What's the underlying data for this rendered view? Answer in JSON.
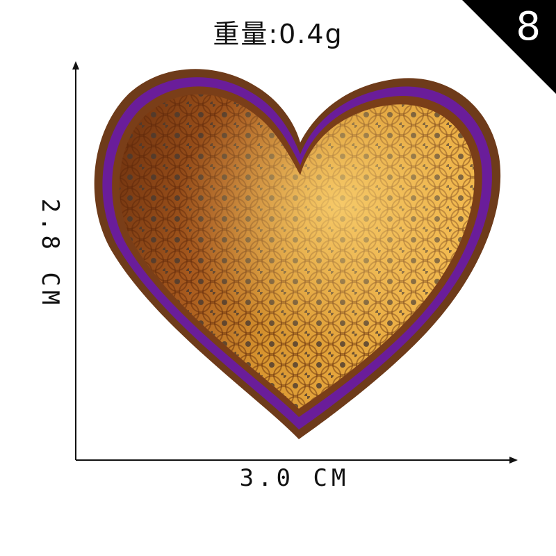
{
  "weight": "重量:0.4g",
  "badge": {
    "number": "8",
    "color": "#000000"
  },
  "dimensions": {
    "width": "3.0 CM",
    "height": "2.8 CM"
  },
  "patch": {
    "shape": "heart",
    "border_color": "#6a1d9a",
    "sequin_colors": [
      "#e2a03a",
      "#b8641f",
      "#8a3f12"
    ]
  }
}
